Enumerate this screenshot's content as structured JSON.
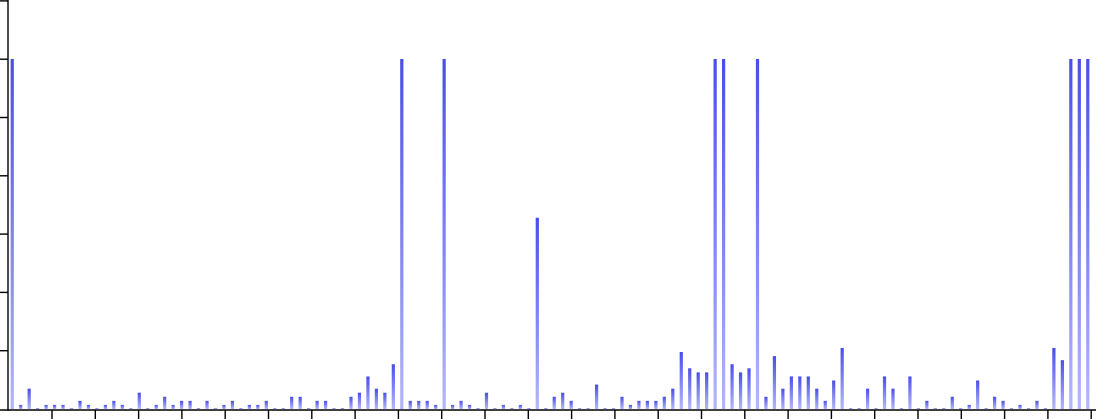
{
  "colors": {
    "bar_top": "#4a4ee8",
    "bar_bottom": "#b3b7fb",
    "axis": "#000000",
    "background": "#ffffff"
  },
  "chart_data": {
    "type": "bar",
    "title": "",
    "xlabel": "",
    "ylabel": "",
    "grid": false,
    "legend": "none",
    "x_ticks": 25,
    "y_ticks": 7,
    "ylim": [
      0,
      100
    ],
    "values": [
      86,
      1,
      5,
      0,
      1,
      1,
      1,
      0,
      2,
      1,
      0,
      1,
      2,
      1,
      0,
      4,
      0,
      1,
      3,
      1,
      2,
      2,
      0,
      2,
      0,
      1,
      2,
      0,
      1,
      1,
      2,
      0,
      0,
      3,
      3,
      0,
      2,
      2,
      0,
      0,
      3,
      4,
      8,
      5,
      4,
      11,
      86,
      2,
      2,
      2,
      1,
      86,
      1,
      2,
      1,
      0,
      4,
      0,
      1,
      0,
      1,
      0,
      47,
      0,
      3,
      4,
      2,
      0,
      0,
      6,
      0,
      0,
      3,
      1,
      2,
      2,
      2,
      3,
      5,
      14,
      10,
      9,
      9,
      86,
      86,
      11,
      9,
      10,
      86,
      3,
      13,
      5,
      8,
      8,
      8,
      5,
      2,
      7,
      15,
      0,
      0,
      5,
      0,
      8,
      5,
      0,
      8,
      0,
      2,
      0,
      0,
      3,
      0,
      1,
      7,
      0,
      3,
      2,
      0,
      1,
      0,
      2,
      0,
      15,
      12,
      86,
      86,
      86
    ]
  }
}
